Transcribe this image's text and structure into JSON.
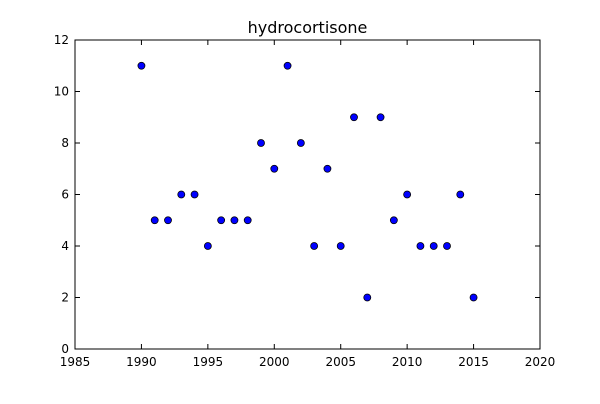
{
  "chart_data": {
    "type": "scatter",
    "title": "hydrocortisone",
    "xlabel": "",
    "ylabel": "",
    "xlim": [
      1985,
      2020
    ],
    "ylim": [
      0,
      12
    ],
    "xticks": [
      1985,
      1990,
      1995,
      2000,
      2005,
      2010,
      2015,
      2020
    ],
    "yticks": [
      0,
      2,
      4,
      6,
      8,
      10,
      12
    ],
    "grid": false,
    "legend": "none",
    "marker_color": "#0000ff",
    "marker_edge_color": "#000000",
    "points": [
      {
        "x": 1990,
        "y": 11
      },
      {
        "x": 1991,
        "y": 5
      },
      {
        "x": 1992,
        "y": 5
      },
      {
        "x": 1993,
        "y": 6
      },
      {
        "x": 1994,
        "y": 6
      },
      {
        "x": 1995,
        "y": 4
      },
      {
        "x": 1996,
        "y": 5
      },
      {
        "x": 1997,
        "y": 5
      },
      {
        "x": 1998,
        "y": 5
      },
      {
        "x": 1999,
        "y": 8
      },
      {
        "x": 2000,
        "y": 7
      },
      {
        "x": 2001,
        "y": 11
      },
      {
        "x": 2002,
        "y": 8
      },
      {
        "x": 2003,
        "y": 4
      },
      {
        "x": 2004,
        "y": 7
      },
      {
        "x": 2005,
        "y": 4
      },
      {
        "x": 2006,
        "y": 9
      },
      {
        "x": 2007,
        "y": 2
      },
      {
        "x": 2008,
        "y": 9
      },
      {
        "x": 2009,
        "y": 5
      },
      {
        "x": 2010,
        "y": 6
      },
      {
        "x": 2011,
        "y": 4
      },
      {
        "x": 2012,
        "y": 4
      },
      {
        "x": 2013,
        "y": 4
      },
      {
        "x": 2014,
        "y": 6
      },
      {
        "x": 2015,
        "y": 2
      }
    ]
  }
}
